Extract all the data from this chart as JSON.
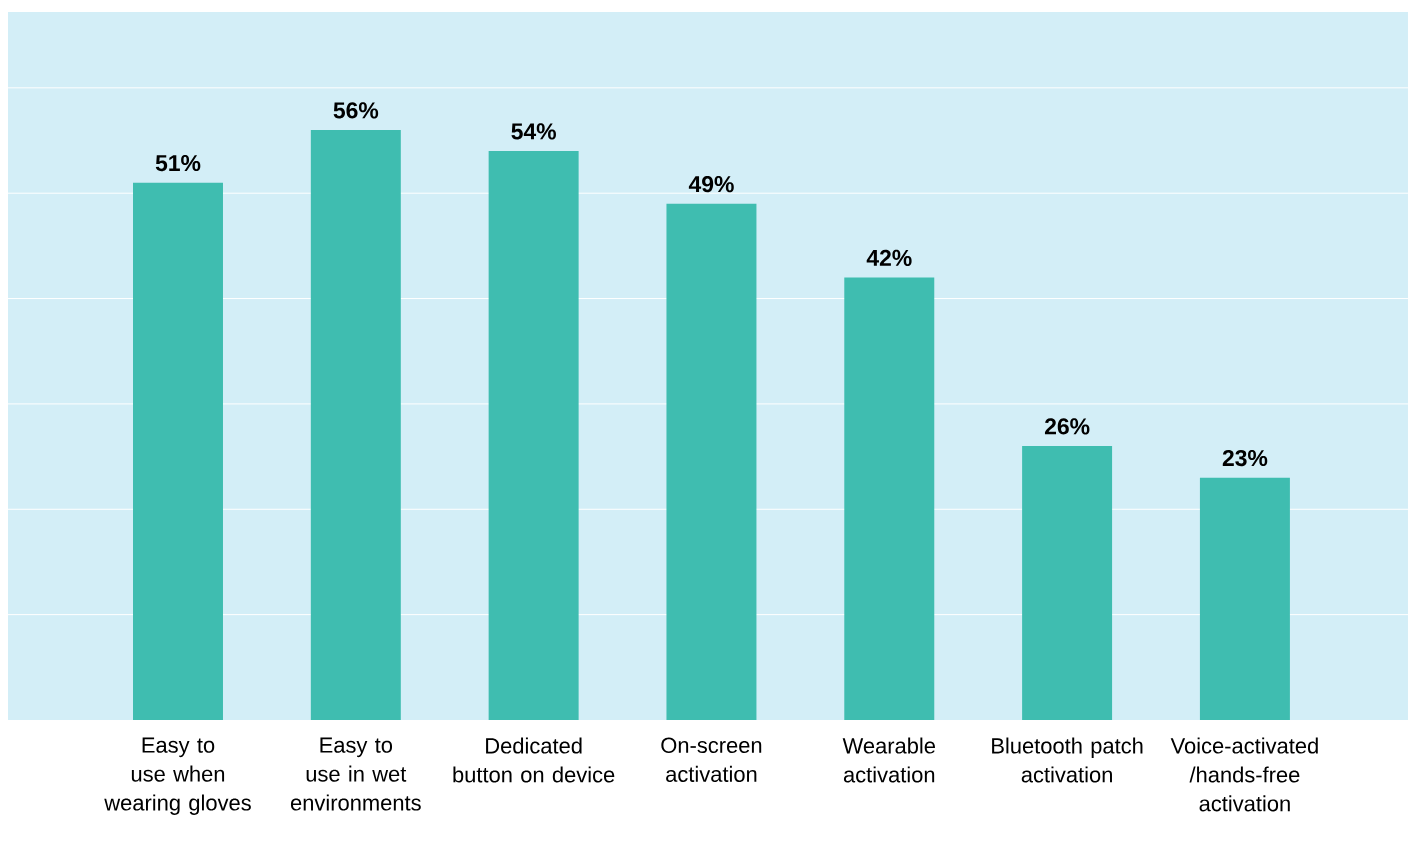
{
  "chart_data": {
    "type": "bar",
    "categories": [
      "Easy to use when wearing gloves",
      "Easy to use in wet environments",
      "Dedicated button on device",
      "On-screen activation",
      "Wearable activation",
      "Bluetooth patch activation",
      "Voice-activated /hands-free activation"
    ],
    "values": [
      51,
      56,
      54,
      49,
      42,
      26,
      23
    ],
    "value_labels": [
      "51%",
      "56%",
      "54%",
      "49%",
      "42%",
      "26%",
      "23%"
    ],
    "color": "#3fbdb0",
    "ylim": [
      0,
      67.2
    ],
    "yticks": [
      {
        "value": 10,
        "label": null
      },
      {
        "value": 20,
        "label": null
      },
      {
        "value": 30,
        "label": null
      },
      {
        "value": 40,
        "label": null
      },
      {
        "value": 50,
        "label": null
      },
      {
        "value": 60,
        "label": null
      }
    ],
    "grid": "y",
    "tick_labels": "x"
  }
}
